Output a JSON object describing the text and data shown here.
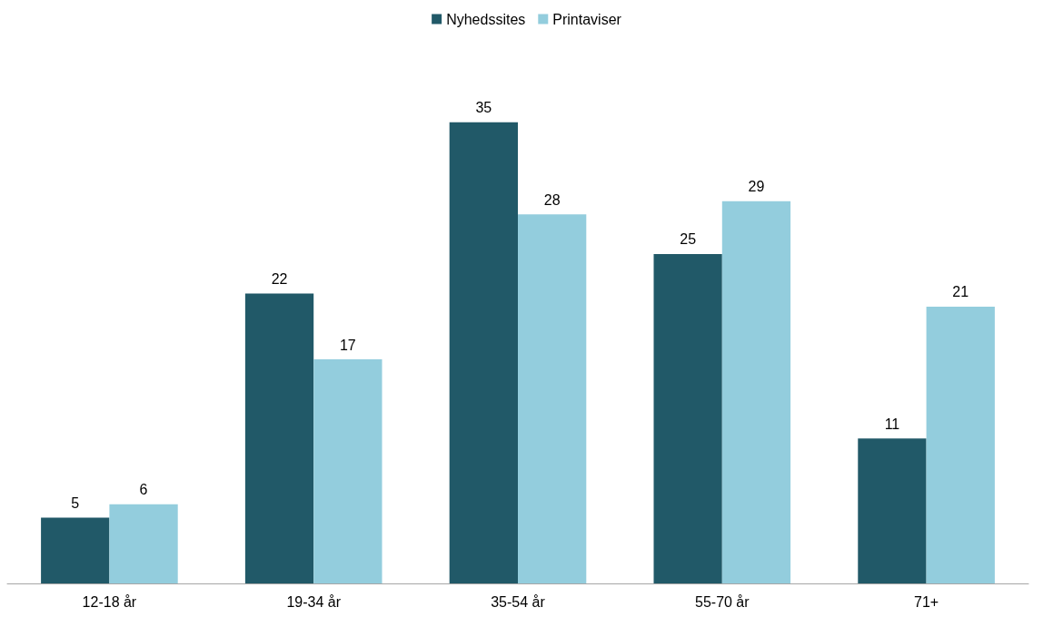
{
  "chart_data": {
    "type": "bar",
    "categories": [
      "12-18 år",
      "19-34 år",
      "35-54 år",
      "55-70 år",
      "71+"
    ],
    "series": [
      {
        "name": "Nyhedssites",
        "color": "#215968",
        "values": [
          5,
          22,
          35,
          25,
          11
        ]
      },
      {
        "name": "Printaviser",
        "color": "#93cddd",
        "values": [
          6,
          17,
          28,
          29,
          21
        ]
      }
    ],
    "data_labels": true,
    "legend": "top",
    "grid": false
  }
}
